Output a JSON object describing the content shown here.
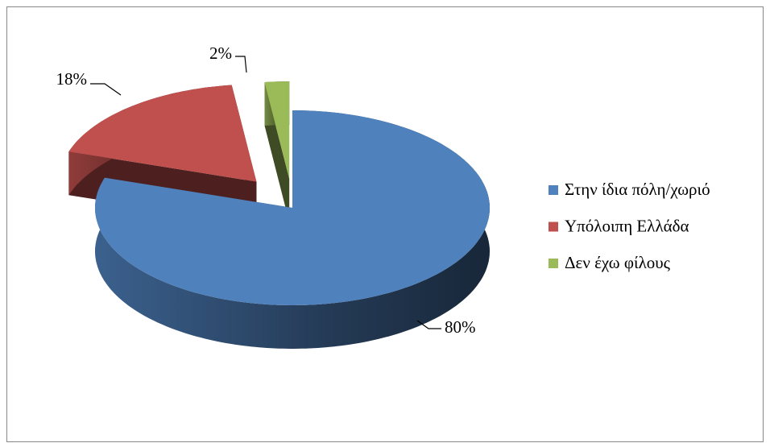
{
  "chart_data": {
    "type": "pie",
    "categories": [
      "Στην ίδια πόλη/χωριό",
      "Υπόλοιπη Ελλάδα",
      "Δεν έχω φίλους"
    ],
    "values": [
      80,
      18,
      2
    ],
    "value_labels": [
      "80%",
      "18%",
      "2%"
    ],
    "colors": [
      "#4f81bd",
      "#c0504d",
      "#9bbb59"
    ],
    "legend": "right"
  }
}
